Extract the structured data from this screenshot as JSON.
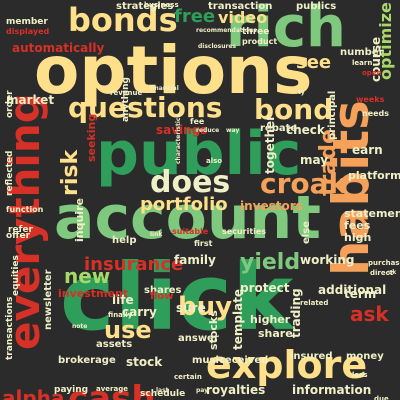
{
  "words": {
    "click": "click",
    "options": "options",
    "public": "public",
    "account": "account",
    "rich": "rich",
    "bonds": "bonds",
    "habits": "habits",
    "everything": "everything",
    "explore": "explore",
    "cash": "cash",
    "does": "does",
    "questions": "questions",
    "croak": "croak",
    "bond": "bond",
    "buy": "buy",
    "use": "use",
    "yield": "yield",
    "trade": "trade",
    "risk": "risk",
    "portfolio": "portfolio",
    "insurance": "insurance",
    "new": "new",
    "ask": "ask",
    "alpha": "alpha",
    "see": "see",
    "free": "free",
    "optimize": "optimize",
    "video": "video",
    "strategies": "strategies",
    "transaction": "transaction",
    "publics": "publics",
    "automatically": "automatically",
    "market": "market",
    "savings": "savings",
    "earn": "earn",
    "working": "working",
    "additional": "additional",
    "family": "family",
    "life": "life",
    "carry": "carry",
    "sure": "sure",
    "stock": "stock",
    "music": "music",
    "received": "received",
    "royalties": "royalties",
    "information": "information",
    "schedule": "schedule",
    "template": "template",
    "higher": "higher",
    "share": "share",
    "insured": "insured",
    "money": "money",
    "trading": "trading",
    "stocks": "stocks",
    "shares": "shares",
    "answer": "answer",
    "protect": "protect",
    "term": "term",
    "fees": "fees",
    "high": "high",
    "statement": "statement",
    "else": "else",
    "platform": "platform",
    "course": "course",
    "number": "number",
    "rebate": "rebate",
    "check": "check",
    "together": "together",
    "principal": "principal",
    "may": "may",
    "investors": "investors",
    "inquire": "inquire",
    "seeking": "seeking",
    "help": "help",
    "flow": "flow",
    "investment": "investment",
    "newsletter": "newsletter",
    "equities": "equities",
    "transactions": "transactions",
    "brokerage": "brokerage",
    "paying": "paying",
    "assets": "assets",
    "reflected": "reflected",
    "member": "member",
    "displayed": "displayed",
    "offer": "offer",
    "order": "order",
    "refer": "refer",
    "function": "function",
    "anything": "anything",
    "three": "three",
    "product": "product",
    "fee": "fee",
    "securities": "securities",
    "suitable": "suitable",
    "first": "first",
    "certain": "certain",
    "average": "average",
    "finally": "finally",
    "weeks": "weeks",
    "needs": "needs",
    "due": "due",
    "loss": "loss",
    "direct": "direct",
    "purchase": "purchase",
    "related": "related",
    "learn": "learn",
    "also": "also",
    "open": "open",
    "business": "business",
    "recommendations": "recommendations",
    "disclosures": "disclosures",
    "revenue": "revenue",
    "financial": "financial",
    "reduce": "reduce",
    "characteristics": "characteristics",
    "way": "way",
    "last": "last",
    "note": "note",
    "pay": "pay",
    "link": "link",
    "ty": "ty",
    "uk": "uk"
  }
}
